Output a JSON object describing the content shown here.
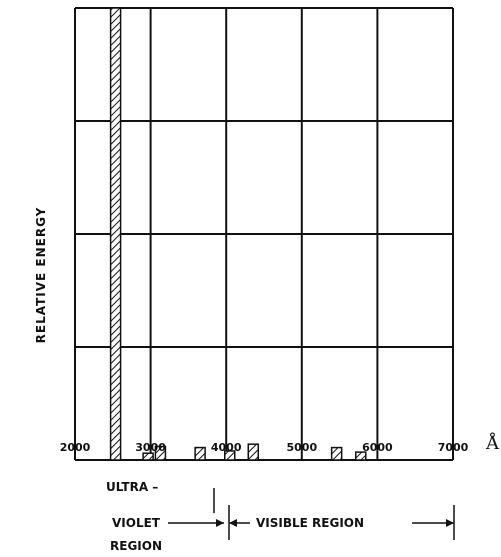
{
  "chart_data": {
    "type": "bar",
    "ylabel": "RELATIVE ENERGY",
    "unit": "Å",
    "xlim": [
      2000,
      7000
    ],
    "ylim": [
      0,
      4
    ],
    "xticks": [
      "2000",
      "3000",
      "4000",
      "5000",
      "6000",
      "7000"
    ],
    "grid": true,
    "bars": [
      {
        "x": 2537,
        "value": 4.0
      },
      {
        "x": 2967,
        "value": 0.06
      },
      {
        "x": 3130,
        "value": 0.12
      },
      {
        "x": 3655,
        "value": 0.11
      },
      {
        "x": 4047,
        "value": 0.08
      },
      {
        "x": 4358,
        "value": 0.14
      },
      {
        "x": 5461,
        "value": 0.11
      },
      {
        "x": 5780,
        "value": 0.07
      }
    ],
    "regions": {
      "uv_line1": "ULTRA –",
      "uv_line2": "VIOLET",
      "uv_line3": "REGION",
      "visible": "VISIBLE REGION"
    }
  }
}
